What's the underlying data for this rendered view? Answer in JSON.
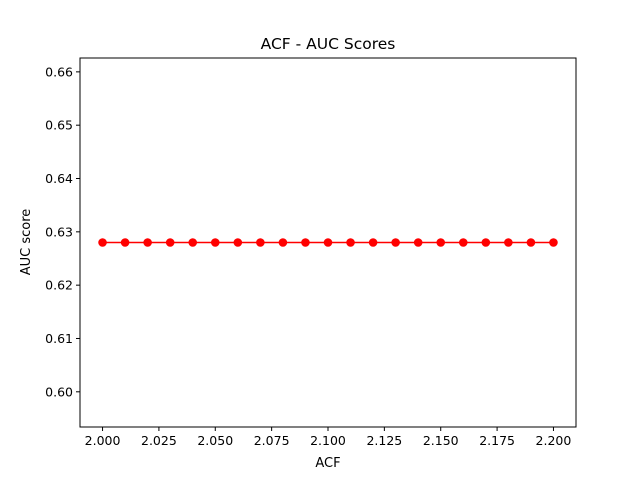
{
  "chart_data": {
    "type": "line",
    "title": "ACF  -  AUC Scores",
    "xlabel": "ACF",
    "ylabel": "AUC score",
    "x": [
      2.0,
      2.01,
      2.02,
      2.03,
      2.04,
      2.05,
      2.06,
      2.07,
      2.08,
      2.09,
      2.1,
      2.11,
      2.12,
      2.13,
      2.14,
      2.15,
      2.16,
      2.17,
      2.18,
      2.19,
      2.2
    ],
    "series": [
      {
        "values": [
          0.628,
          0.628,
          0.628,
          0.628,
          0.628,
          0.628,
          0.628,
          0.628,
          0.628,
          0.628,
          0.628,
          0.628,
          0.628,
          0.628,
          0.628,
          0.628,
          0.628,
          0.628,
          0.628,
          0.628,
          0.628
        ],
        "color": "#ff0000",
        "marker": "circle"
      }
    ],
    "xlim": [
      1.99,
      2.21
    ],
    "ylim": [
      0.5934,
      0.6626
    ],
    "xticks": [
      2.0,
      2.025,
      2.05,
      2.075,
      2.1,
      2.125,
      2.15,
      2.175,
      2.2
    ],
    "xtick_labels": [
      "2.000",
      "2.025",
      "2.050",
      "2.075",
      "2.100",
      "2.125",
      "2.150",
      "2.175",
      "2.200"
    ],
    "yticks": [
      0.6,
      0.61,
      0.62,
      0.63,
      0.64,
      0.65,
      0.66
    ],
    "ytick_labels": [
      "0.60",
      "0.61",
      "0.62",
      "0.63",
      "0.64",
      "0.65",
      "0.66"
    ],
    "grid": false,
    "legend": false
  }
}
